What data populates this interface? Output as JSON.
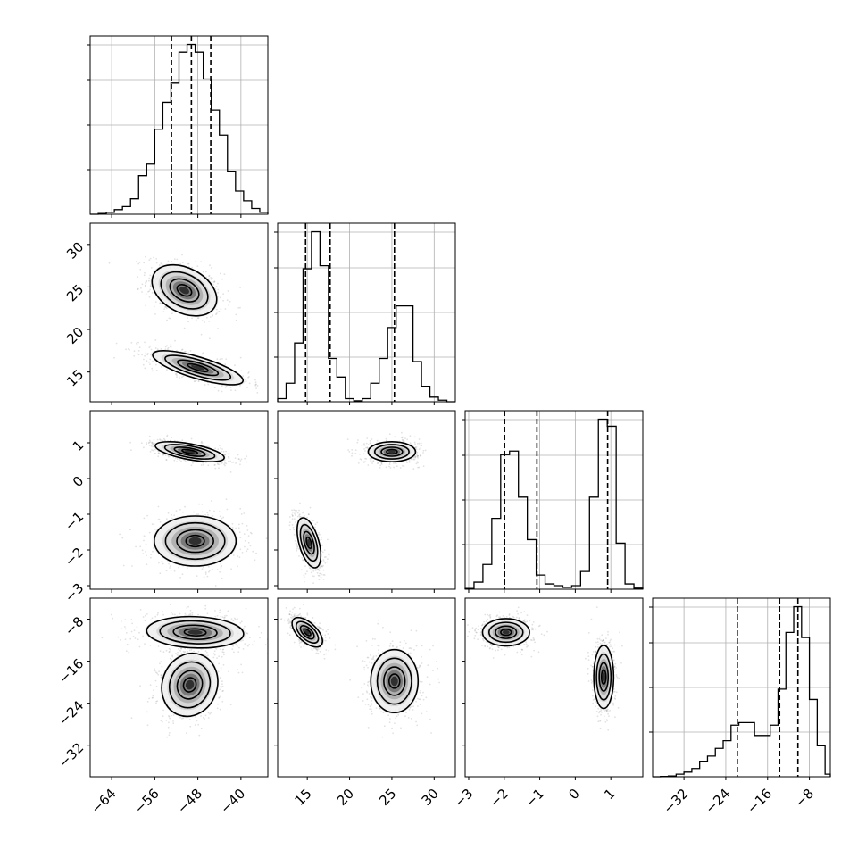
{
  "chart_data": {
    "type": "corner",
    "parameters": 4,
    "grid": true,
    "axes": [
      {
        "range": [
          -68,
          -35
        ],
        "ticks": [
          -64,
          -56,
          -48,
          -40
        ],
        "tick_labels": [
          "−64",
          "−56",
          "−48",
          "−40"
        ]
      },
      {
        "range": [
          11.5,
          32.5
        ],
        "ticks": [
          15,
          20,
          25,
          30
        ],
        "tick_labels": [
          "15",
          "20",
          "25",
          "30"
        ]
      },
      {
        "range": [
          -3.1,
          1.9
        ],
        "ticks": [
          -3,
          -2,
          -1,
          0,
          1
        ],
        "tick_labels": [
          "−3",
          "−2",
          "−1",
          "0",
          "1"
        ]
      },
      {
        "range": [
          -38,
          -4
        ],
        "ticks": [
          -32,
          -24,
          -16,
          -8
        ],
        "tick_labels": [
          "−32",
          "−24",
          "−16",
          "−8"
        ]
      }
    ],
    "y_tick_labels": {
      "row1": [
        "15",
        "20",
        "25",
        "30"
      ],
      "row2": [
        "−3",
        "−2",
        "−1",
        "0",
        "1"
      ],
      "row3": [
        "−32",
        "−24",
        "−16",
        "−8"
      ]
    },
    "histograms": [
      {
        "param": 0,
        "edges": [
          -68,
          -66.5,
          -65,
          -63.5,
          -62,
          -60.5,
          -59,
          -57.5,
          -56,
          -54.5,
          -53,
          -51.5,
          -50,
          -48.5,
          -47,
          -45.5,
          -44,
          -42.5,
          -41,
          -39.5,
          -38,
          -36.5,
          -35
        ],
        "counts": [
          0,
          2,
          5,
          12,
          20,
          40,
          100,
          130,
          220,
          290,
          340,
          420,
          440,
          420,
          350,
          270,
          205,
          110,
          60,
          35,
          15,
          5
        ],
        "quantiles": [
          -52.9,
          -49.2,
          -45.6
        ]
      },
      {
        "param": 1,
        "edges": [
          11.5,
          12.5,
          13.5,
          14.5,
          15.5,
          16.5,
          17.5,
          18.5,
          19.5,
          20.5,
          21.5,
          22.5,
          23.5,
          24.5,
          25.5,
          26.5,
          27.5,
          28.5,
          29.5,
          30.5,
          31.5,
          32.5
        ],
        "counts": [
          10,
          60,
          190,
          430,
          550,
          440,
          140,
          80,
          10,
          3,
          10,
          60,
          140,
          240,
          310,
          310,
          130,
          50,
          15,
          5,
          0
        ],
        "quantiles": [
          14.8,
          17.7,
          25.3
        ]
      },
      {
        "param": 2,
        "edges": [
          -3.1,
          -2.85,
          -2.6,
          -2.35,
          -2.1,
          -1.85,
          -1.6,
          -1.35,
          -1.1,
          -0.85,
          -0.6,
          -0.35,
          -0.1,
          0.15,
          0.4,
          0.65,
          0.9,
          1.15,
          1.4,
          1.65,
          1.9
        ],
        "counts": [
          2,
          20,
          70,
          200,
          380,
          390,
          260,
          140,
          40,
          15,
          10,
          5,
          10,
          50,
          260,
          480,
          460,
          130,
          15,
          3
        ],
        "quantiles": [
          -1.99,
          -1.08,
          0.91
        ]
      },
      {
        "param": 3,
        "edges": [
          -38,
          -36.5,
          -35,
          -33.5,
          -32,
          -30.5,
          -29,
          -27.5,
          -26,
          -24.5,
          -23,
          -21.5,
          -20,
          -18.5,
          -17,
          -15.5,
          -14,
          -12.5,
          -11,
          -9.5,
          -8,
          -6.5,
          -5,
          -4
        ],
        "counts": [
          0,
          1,
          3,
          10,
          18,
          32,
          60,
          80,
          110,
          140,
          200,
          210,
          210,
          160,
          160,
          200,
          340,
          560,
          660,
          540,
          300,
          120,
          10
        ],
        "quantiles": [
          -21.8,
          -13.7,
          -10.2
        ]
      }
    ],
    "pair_density": [
      {
        "x": 0,
        "y": 1,
        "modes": [
          {
            "center": [
              -50.5,
              24.6
            ],
            "sigma": [
              3.0,
              1.5
            ],
            "corr": -0.35
          },
          {
            "center": [
              -48,
              15.5
            ],
            "sigma": [
              4.2,
              1.0
            ],
            "corr": -0.75
          }
        ]
      },
      {
        "x": 0,
        "y": 2,
        "modes": [
          {
            "center": [
              -49.5,
              0.75
            ],
            "sigma": [
              3.2,
              0.14
            ],
            "corr": -0.6
          },
          {
            "center": [
              -48.5,
              -1.75
            ],
            "sigma": [
              3.8,
              0.35
            ],
            "corr": 0.0
          }
        ]
      },
      {
        "x": 0,
        "y": 3,
        "modes": [
          {
            "center": [
              -48.5,
              -10.5
            ],
            "sigma": [
              4.5,
              1.5
            ],
            "corr": -0.1
          },
          {
            "center": [
              -49.5,
              -20.5
            ],
            "sigma": [
              2.6,
              3.0
            ],
            "corr": 0.1
          }
        ]
      },
      {
        "x": 1,
        "y": 2,
        "modes": [
          {
            "center": [
              25.0,
              0.75
            ],
            "sigma": [
              1.4,
              0.14
            ],
            "corr": 0.0
          },
          {
            "center": [
              15.2,
              -1.8
            ],
            "sigma": [
              0.7,
              0.35
            ],
            "corr": -0.5
          }
        ]
      },
      {
        "x": 1,
        "y": 3,
        "modes": [
          {
            "center": [
              15.0,
              -10.5
            ],
            "sigma": [
              0.9,
              1.4
            ],
            "corr": -0.6
          },
          {
            "center": [
              25.3,
              -19.8
            ],
            "sigma": [
              1.4,
              3.0
            ],
            "corr": 0.0
          }
        ]
      },
      {
        "x": 2,
        "y": 3,
        "modes": [
          {
            "center": [
              -1.95,
              -10.5
            ],
            "sigma": [
              0.33,
              1.3
            ],
            "corr": 0.0
          },
          {
            "center": [
              0.8,
              -19.0
            ],
            "sigma": [
              0.14,
              3.0
            ],
            "corr": 0.0
          }
        ]
      }
    ]
  }
}
